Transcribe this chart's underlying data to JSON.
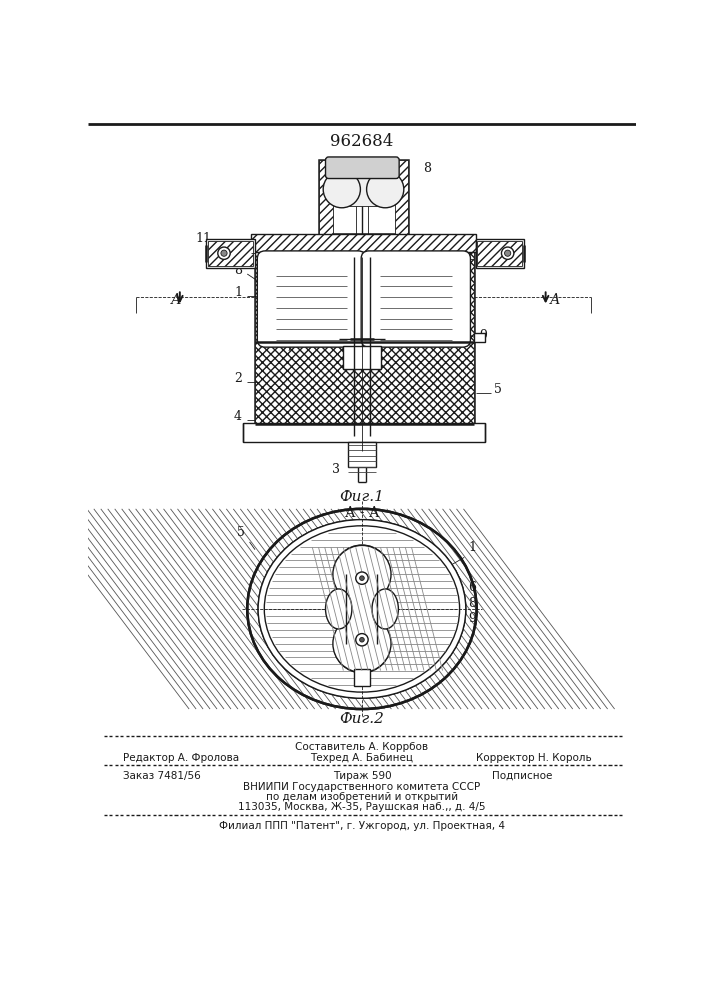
{
  "patent_number": "962684",
  "fig1_caption": "Фиг.1",
  "fig2_caption": "Фиг.2",
  "section_label": "А - А",
  "line_color": "#1a1a1a",
  "footer_col1_line1": "Редактор А. Фролова",
  "footer_col2_line1": "Составитель А. Коррбов",
  "footer_col2_line2": "Техред А. Бабинец",
  "footer_col3_line1": "Корректор Н. Король",
  "footer_order": "Заказ 7481/56",
  "footer_print": "Тираж 590",
  "footer_sub": "Подписное",
  "footer_org1": "ВНИИПИ Государственного комитета СССР",
  "footer_org2": "по делам изобретений и открытий",
  "footer_org3": "113035, Москва, Ж-35, Раушская наб.,, д. 4/5",
  "footer_patent": "Филиал ППП \"Патент\", г. Ужгород, ул. Проектная, 4"
}
